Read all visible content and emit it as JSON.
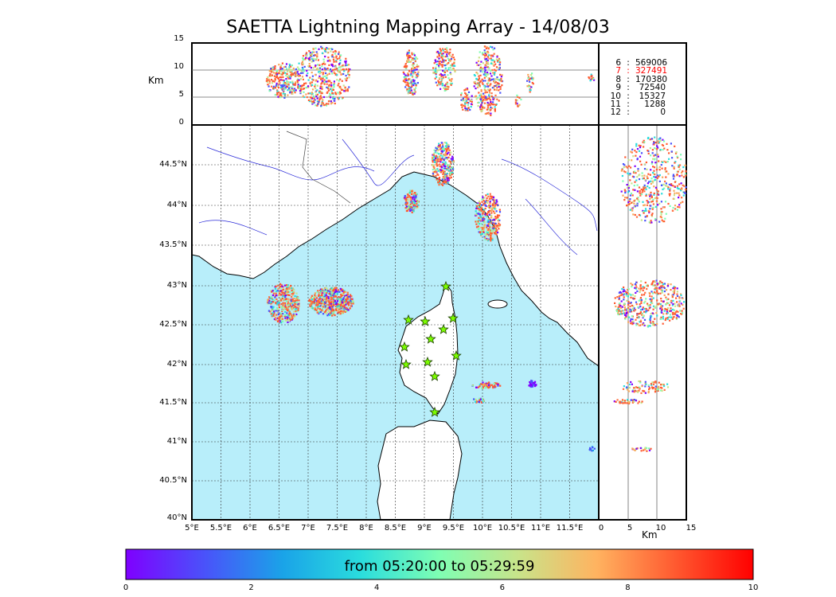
{
  "title": "SAETTA Lightning Mapping Array - 14/08/03",
  "altitude_panel": {
    "unit_label": "Km",
    "ticks": [
      "15",
      "10",
      "5",
      "0"
    ]
  },
  "side_panel": {
    "unit_label": "Km",
    "ticks": [
      "0",
      "5",
      "10",
      "15"
    ]
  },
  "map": {
    "lon_labels": [
      "5°E",
      "5.5°E",
      "6°E",
      "6.5°E",
      "7°E",
      "7.5°E",
      "8°E",
      "8.5°E",
      "9°E",
      "9.5°E",
      "10°E",
      "10.5°E",
      "11°E",
      "11.5°E"
    ],
    "lat_labels": [
      "44.5°N",
      "44°N",
      "43.5°N",
      "43°N",
      "42.5°N",
      "42°N",
      "41.5°N",
      "41°N",
      "40.5°N",
      "40°N"
    ],
    "sea_color": "#b8eefa",
    "station_icon": "star-icon",
    "station_color": "#7cfc00"
  },
  "station_stats": [
    {
      "level": "6",
      "count": "569006",
      "highlight": false
    },
    {
      "level": "7",
      "count": "327491",
      "highlight": true
    },
    {
      "level": "8",
      "count": "170380",
      "highlight": false
    },
    {
      "level": "9",
      "count": "72540",
      "highlight": false
    },
    {
      "level": "10",
      "count": "15327",
      "highlight": false
    },
    {
      "level": "11",
      "count": "1288",
      "highlight": false
    },
    {
      "level": "12",
      "count": "0",
      "highlight": false
    }
  ],
  "colorbar": {
    "label": "from 05:20:00 to 05:29:59",
    "ticks": [
      "0",
      "2",
      "4",
      "6",
      "8",
      "10"
    ],
    "colors": [
      "#7f00ff",
      "#4a52fa",
      "#1aa3e8",
      "#2adddd",
      "#7ffeb3",
      "#c8e48a",
      "#ffb360",
      "#ff5a30",
      "#ff0000"
    ]
  },
  "highlight_color": "#ff0000"
}
